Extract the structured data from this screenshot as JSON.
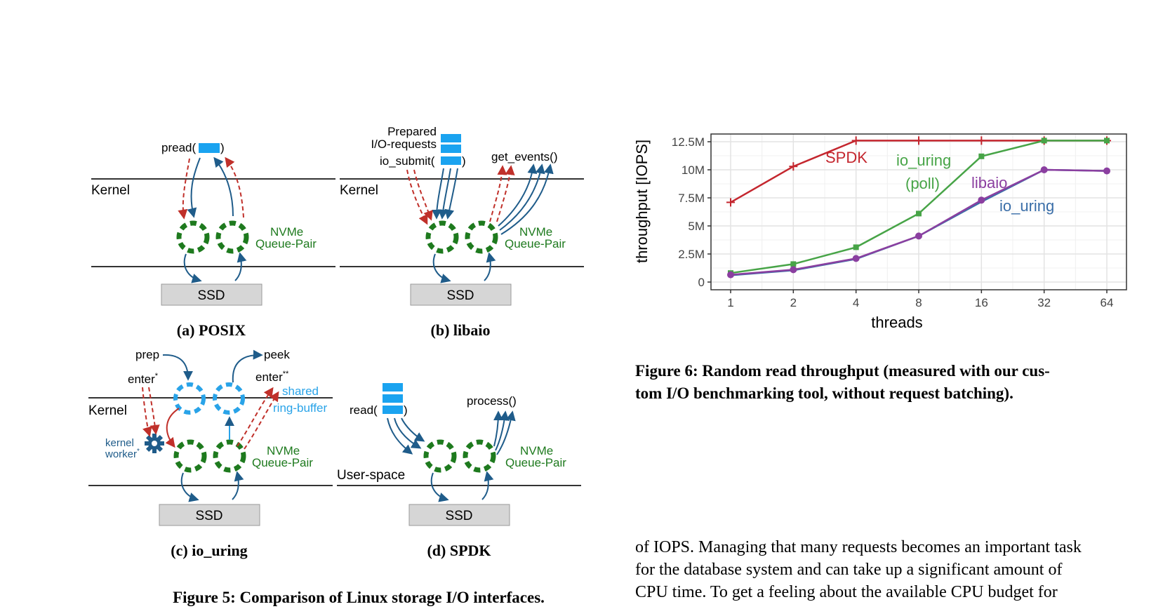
{
  "figure5": {
    "caption": "Figure 5: Comparison of Linux storage I/O interfaces.",
    "common": {
      "kernel": "Kernel",
      "ssd": "SSD",
      "nvme": "NVMe",
      "queue_pair": "Queue-Pair",
      "user_space": "User-space"
    },
    "posix": {
      "subcaption": "(a) POSIX",
      "pread_open": "pread(",
      "close": ")"
    },
    "libaio": {
      "subcaption": "(b) libaio",
      "prepared": "Prepared",
      "io_requests": "I/O-requests",
      "io_submit_open": "io_submit(",
      "close": ")",
      "get_events": "get_events()"
    },
    "io_uring": {
      "subcaption": "(c) io_uring",
      "prep": "prep",
      "peek": "peek",
      "enter1": "enter",
      "enter1_sup": "*",
      "enter2": "enter",
      "enter2_sup": "**",
      "shared": "shared",
      "ring_buffer": "ring-buffer",
      "kernel_label": "kernel",
      "worker": "worker",
      "worker_sup": "*"
    },
    "spdk": {
      "subcaption": "(d) SPDK",
      "read_open": "read(",
      "close": ")",
      "process": "process()"
    },
    "colors": {
      "green_ring": "#1e7a1e",
      "blue_ring": "#29a3e8",
      "arrow_blue": "#1f5c8a",
      "arrow_red": "#c0302a",
      "buffer": "#1aa3f0",
      "ssd_fill": "#d6d6d6"
    }
  },
  "figure6": {
    "caption_line1": "Figure 6: Random read throughput (measured with our cus-",
    "caption_line2": "tom I/O benchmarking tool, without request batching).",
    "chart_data": {
      "type": "line",
      "xlabel": "threads",
      "ylabel": "throughput [IOPS]",
      "x": [
        "1",
        "2",
        "4",
        "8",
        "16",
        "32",
        "64"
      ],
      "ylim": [
        0,
        12500000
      ],
      "yticks": [
        "0",
        "2.5M",
        "5M",
        "7.5M",
        "10M",
        "12.5M"
      ],
      "grid": true,
      "series": [
        {
          "name": "SPDK",
          "color": "#c4262e",
          "marker": "plus",
          "values": [
            7100000,
            10300000,
            12600000,
            12600000,
            12600000,
            12600000,
            12600000
          ]
        },
        {
          "name": "io_uring (poll)",
          "color": "#47a447",
          "marker": "square",
          "values": [
            800000,
            1600000,
            3100000,
            6100000,
            11200000,
            12600000,
            12600000
          ]
        },
        {
          "name": "libaio",
          "color": "#8b3fa0",
          "marker": "circle",
          "values": [
            650000,
            1100000,
            2100000,
            4100000,
            7300000,
            10000000,
            9900000
          ]
        },
        {
          "name": "io_uring",
          "color": "#3a6ea8",
          "marker": "none",
          "values": [
            600000,
            1050000,
            2050000,
            4100000,
            7150000,
            10000000,
            9900000
          ]
        }
      ],
      "labels": {
        "spdk": "SPDK",
        "io_uring_poll_1": "io_uring",
        "io_uring_poll_2": "(poll)",
        "libaio": "libaio",
        "io_uring": "io_uring"
      }
    }
  },
  "body": {
    "line1": "of IOPS. Managing that many requests becomes an important task",
    "line2": "for the database system and can take up a significant amount of",
    "line3": "CPU time. To get a feeling about the available CPU budget for"
  }
}
